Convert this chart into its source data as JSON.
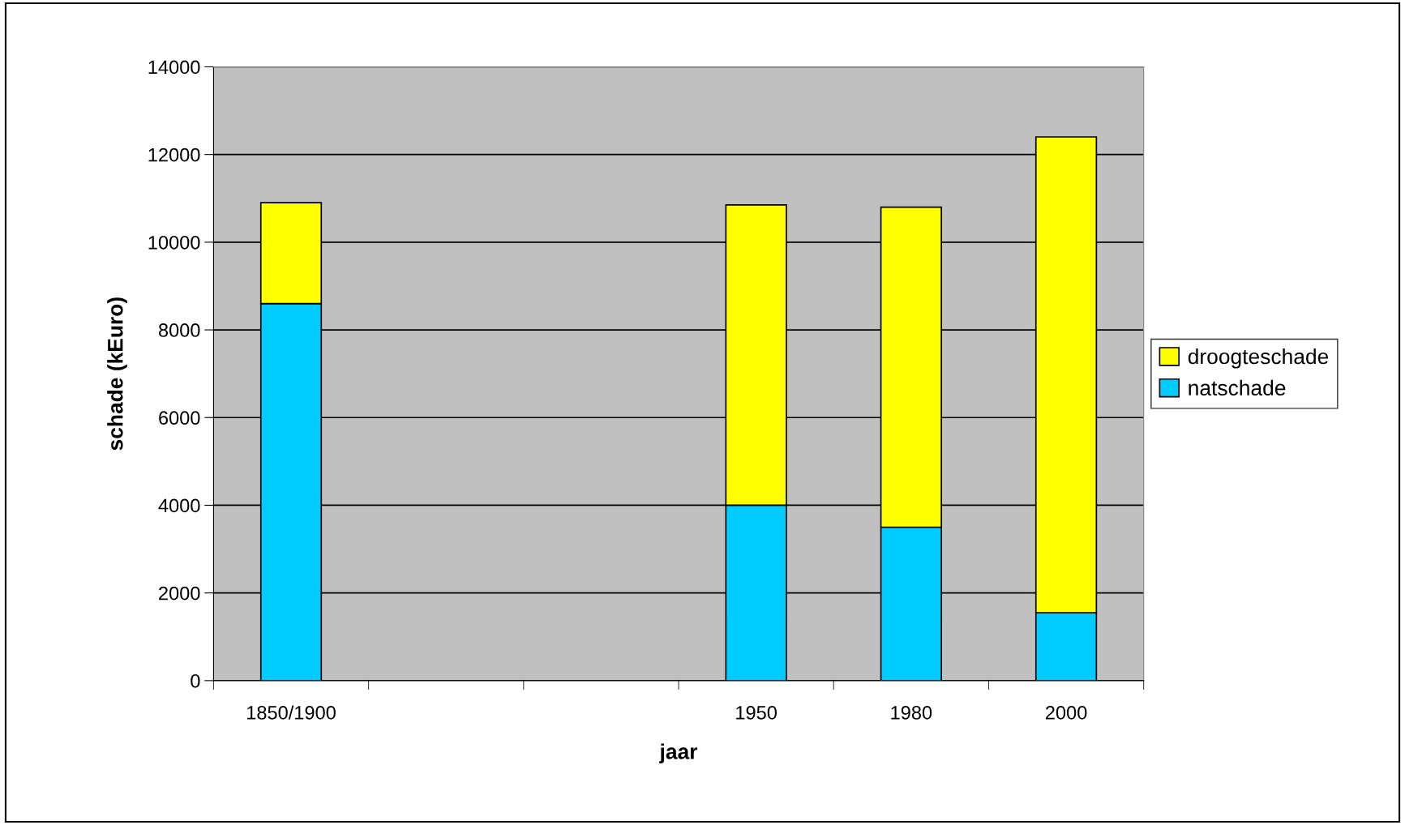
{
  "chart_data": {
    "type": "bar",
    "stacked": true,
    "xlabel": "jaar",
    "ylabel": "schade (kEuro)",
    "categories": [
      "1850/1900",
      null,
      null,
      "1950",
      "1980",
      "2000"
    ],
    "series": [
      {
        "name": "natschade",
        "color": "#00ccff",
        "values": [
          8600,
          null,
          null,
          4000,
          3500,
          1550
        ]
      },
      {
        "name": "droogteschade",
        "color": "#ffff00",
        "values": [
          2300,
          null,
          null,
          6850,
          7300,
          10850
        ]
      }
    ],
    "ylim": [
      0,
      14000
    ],
    "yticks": [
      0,
      2000,
      4000,
      6000,
      8000,
      10000,
      12000,
      14000
    ],
    "grid": "y",
    "legend": "right"
  }
}
